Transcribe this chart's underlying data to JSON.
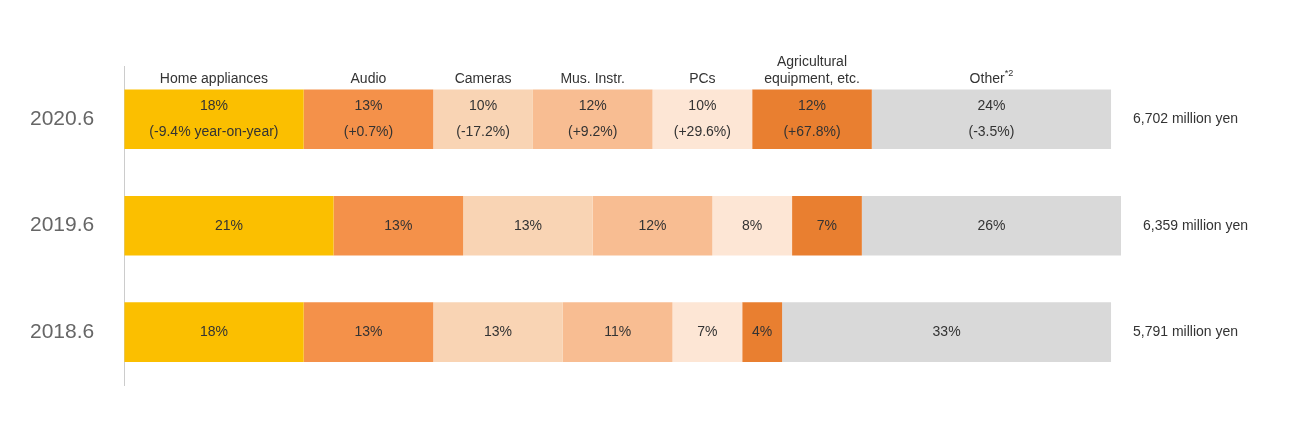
{
  "chart_data": {
    "type": "bar",
    "orientation": "horizontal",
    "stacked": true,
    "categories": [
      "2020.6",
      "2019.6",
      "2018.6"
    ],
    "series": [
      {
        "name": "Home appliances",
        "color": "#fbbf00",
        "values": [
          18,
          21,
          18
        ],
        "value_labels": [
          "18%\n(-9.4% year-on-year)",
          "21%",
          "18%"
        ]
      },
      {
        "name": "Audio",
        "color": "#f4914a",
        "values": [
          13,
          13,
          13
        ],
        "value_labels": [
          "13%\n(+0.7%)",
          "13%",
          "13%"
        ]
      },
      {
        "name": "Cameras",
        "color": "#f9d4b4",
        "values": [
          10,
          13,
          13
        ],
        "value_labels": [
          "10%\n(-17.2%)",
          "13%",
          "13%"
        ]
      },
      {
        "name": "Mus. Instr.",
        "color": "#f8bd92",
        "values": [
          12,
          12,
          11
        ],
        "value_labels": [
          "12%\n(+9.2%)",
          "12%",
          "11%"
        ]
      },
      {
        "name": "PCs",
        "color": "#fde6d5",
        "values": [
          10,
          8,
          7
        ],
        "value_labels": [
          "10%\n(+29.6%)",
          "8%",
          "7%"
        ]
      },
      {
        "name": "Agricultural equipment, etc.",
        "color": "#e97f30",
        "values": [
          12,
          7,
          4
        ],
        "value_labels": [
          "12%\n(+67.8%)",
          "7%",
          "4%"
        ]
      },
      {
        "name": "Other$^{*2}$",
        "color": "#d9d9d9",
        "values": [
          24,
          26,
          33
        ],
        "value_labels": [
          "24%\n(-3.5%)",
          "26%",
          "33%"
        ]
      }
    ],
    "annotations": [
      "6,702 million yen",
      "6,359 million yen",
      "5,791 million yen"
    ]
  }
}
